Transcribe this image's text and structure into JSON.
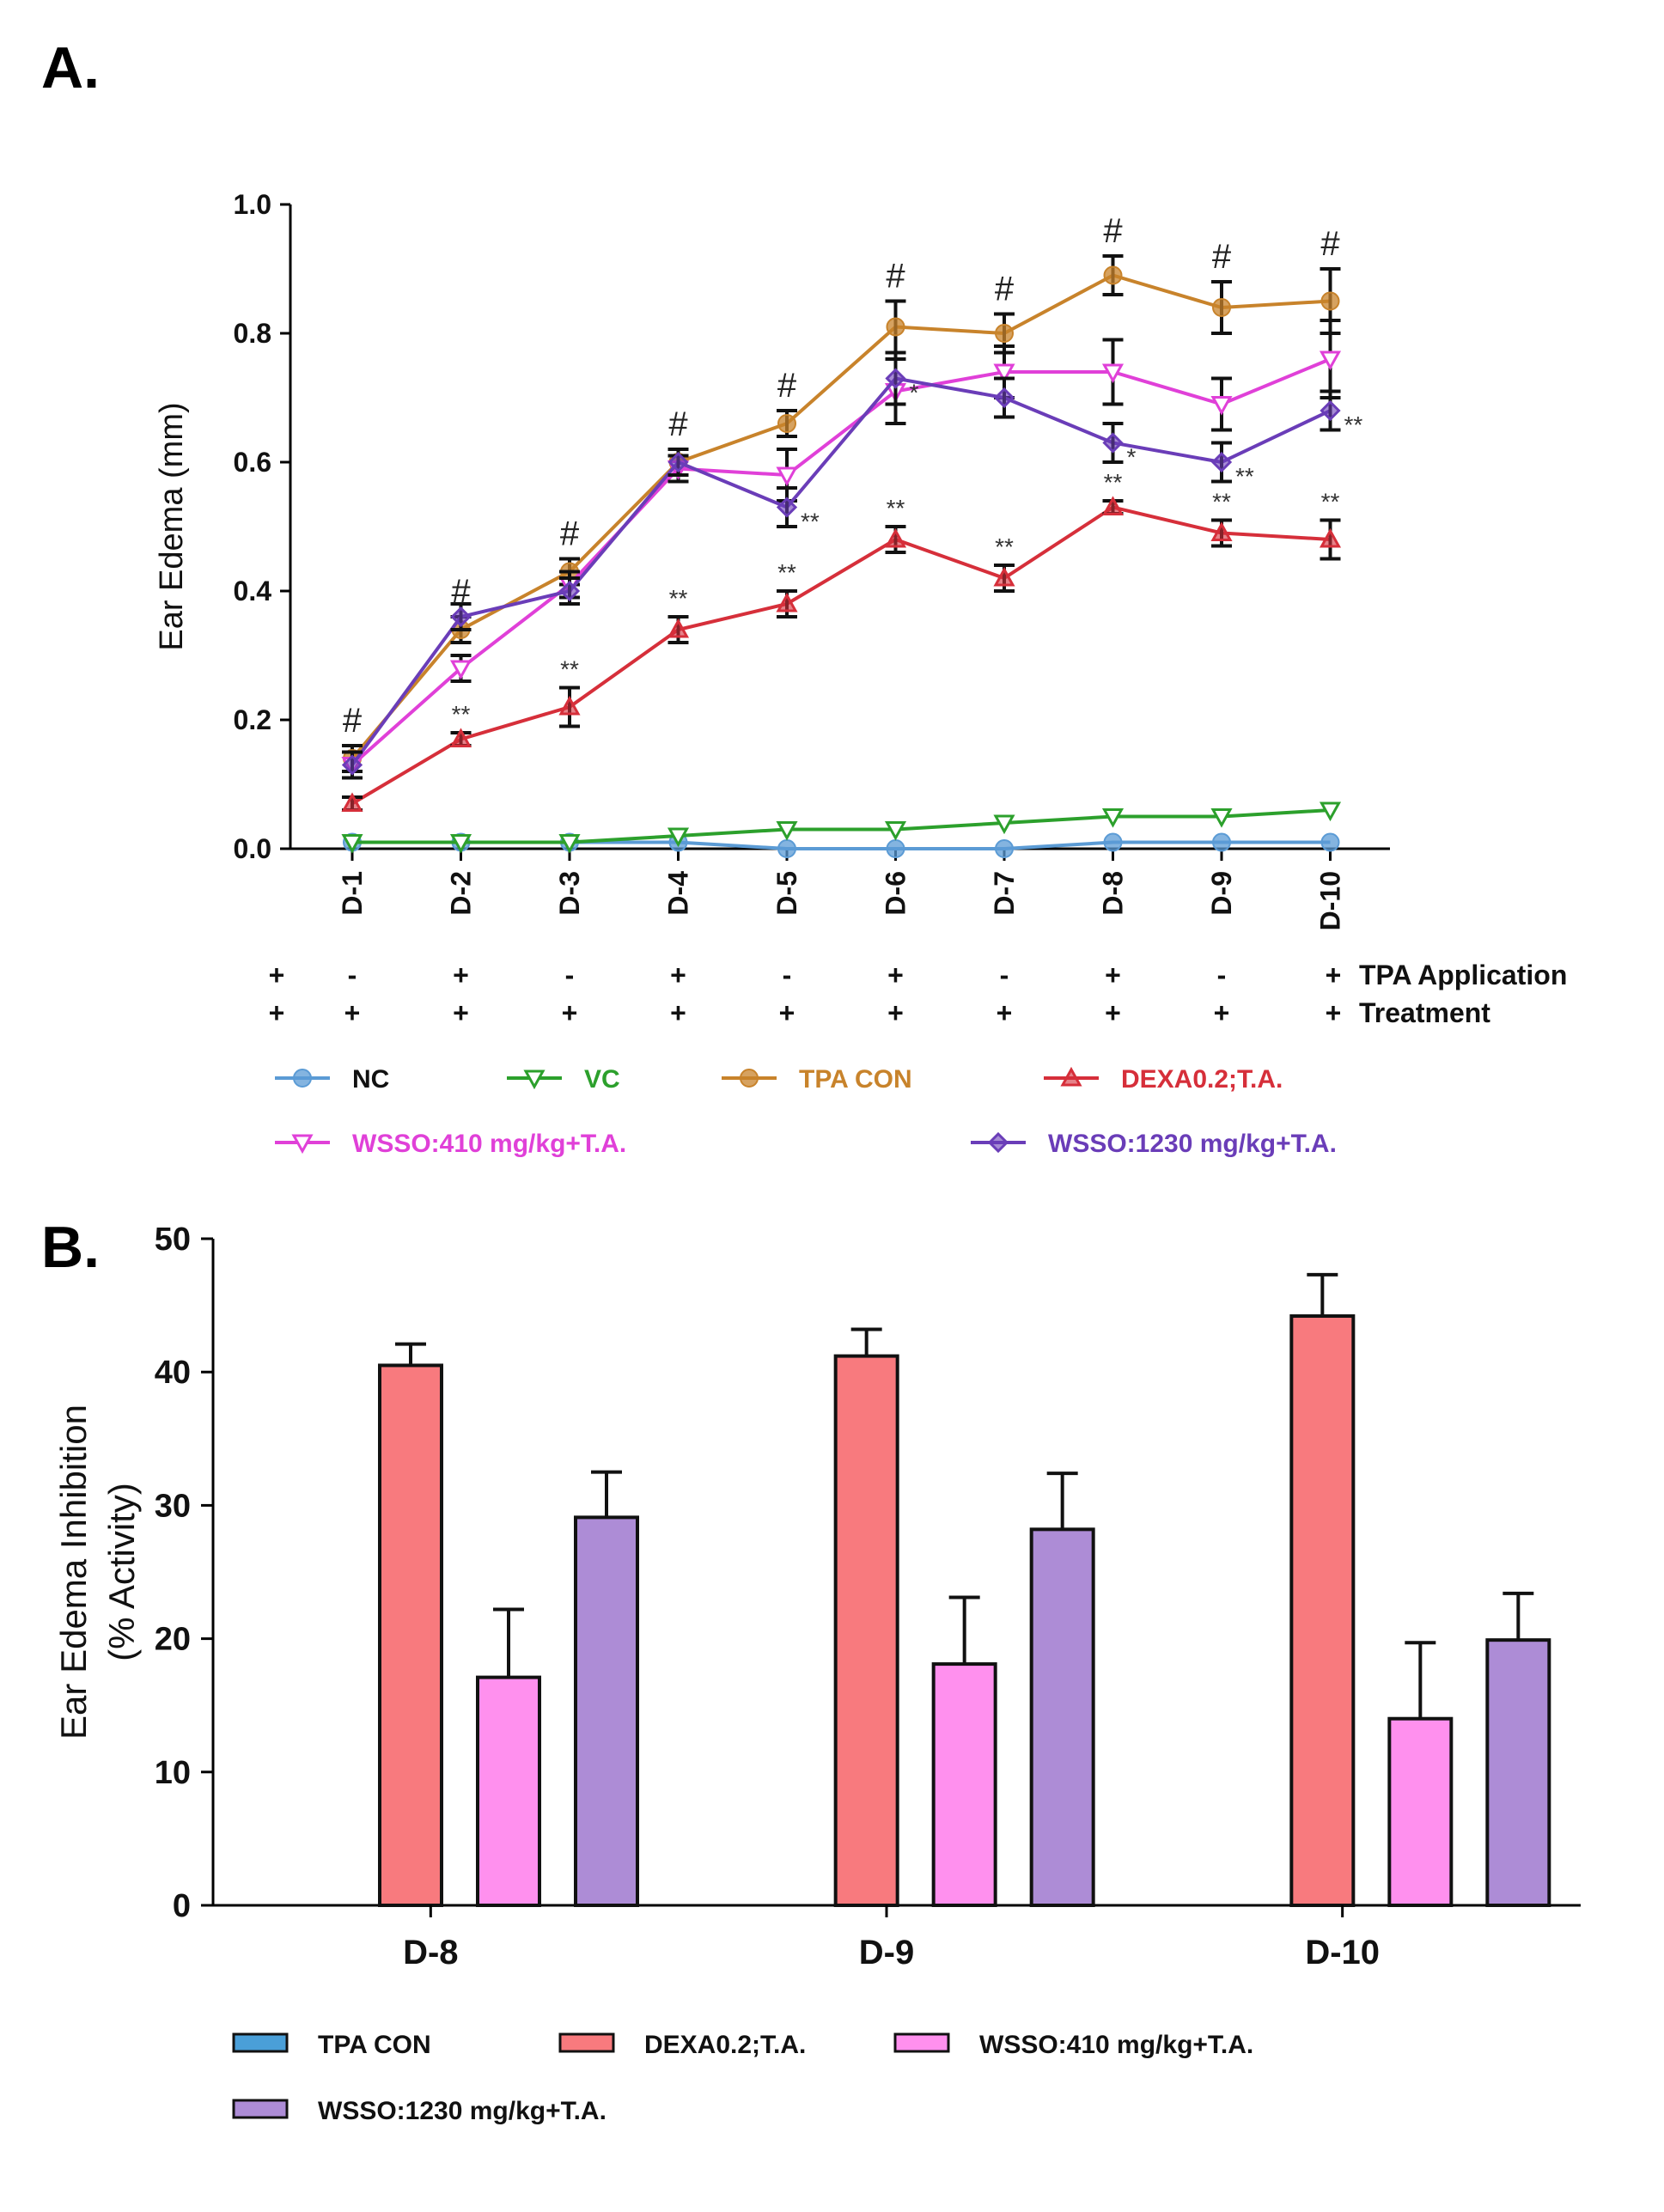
{
  "panel_a_label": "A.",
  "panel_b_label": "B.",
  "protocol": {
    "tpa_label": "TPA Application",
    "treatment_label": "Treatment",
    "tpa_signs": [
      "+",
      "-",
      "+",
      "-",
      "+",
      "-",
      "+",
      "-",
      "+",
      "-",
      "+"
    ],
    "treatment_signs": [
      "+",
      "+",
      "+",
      "+",
      "+",
      "+",
      "+",
      "+",
      "+",
      "+",
      "+"
    ]
  },
  "chart_data": [
    {
      "type": "line",
      "title": "",
      "xlabel": "",
      "ylabel": "Ear Edema (mm)",
      "ylim": [
        0,
        1.0
      ],
      "yticks": [
        "0.0",
        "0.2",
        "0.4",
        "0.6",
        "0.8",
        "1.0"
      ],
      "categories": [
        "D-1",
        "D-2",
        "D-3",
        "D-4",
        "D-5",
        "D-6",
        "D-7",
        "D-8",
        "D-9",
        "D-10"
      ],
      "series": [
        {
          "name": "NC",
          "color": "#5b9bd5",
          "marker": "circle",
          "values": [
            0.01,
            0.01,
            0.01,
            0.01,
            0.0,
            0.0,
            0.0,
            0.01,
            0.01,
            0.01
          ],
          "errors": [
            0,
            0,
            0,
            0,
            0,
            0,
            0,
            0,
            0,
            0
          ]
        },
        {
          "name": "VC",
          "color": "#2ca02c",
          "marker": "triangle-down",
          "values": [
            0.01,
            0.01,
            0.01,
            0.02,
            0.03,
            0.03,
            0.04,
            0.05,
            0.05,
            0.06
          ],
          "errors": [
            0,
            0,
            0,
            0,
            0,
            0,
            0,
            0,
            0,
            0
          ]
        },
        {
          "name": "TPA CON",
          "color": "#c8832b",
          "marker": "circle",
          "values": [
            0.14,
            0.34,
            0.43,
            0.6,
            0.66,
            0.81,
            0.8,
            0.89,
            0.84,
            0.85
          ],
          "errors": [
            0.02,
            0.02,
            0.02,
            0.02,
            0.02,
            0.04,
            0.03,
            0.03,
            0.04,
            0.05
          ]
        },
        {
          "name": "DEXA0.2;T.A.",
          "color": "#d62f3a",
          "marker": "triangle-up",
          "values": [
            0.07,
            0.17,
            0.22,
            0.34,
            0.38,
            0.48,
            0.42,
            0.53,
            0.49,
            0.48
          ],
          "errors": [
            0.01,
            0.01,
            0.03,
            0.02,
            0.02,
            0.02,
            0.02,
            0.01,
            0.02,
            0.03
          ]
        },
        {
          "name": "WSSO:410 mg/kg+T.A.",
          "color": "#e040d8",
          "marker": "triangle-down",
          "values": [
            0.13,
            0.28,
            0.41,
            0.59,
            0.58,
            0.71,
            0.74,
            0.74,
            0.69,
            0.76
          ],
          "errors": [
            0.02,
            0.02,
            0.02,
            0.02,
            0.04,
            0.05,
            0.04,
            0.05,
            0.04,
            0.06
          ]
        },
        {
          "name": "WSSO:1230 mg/kg+T.A.",
          "color": "#6a3db8",
          "marker": "diamond",
          "values": [
            0.13,
            0.36,
            0.4,
            0.6,
            0.53,
            0.73,
            0.7,
            0.63,
            0.6,
            0.68
          ],
          "errors": [
            0.02,
            0.02,
            0.02,
            0.02,
            0.03,
            0.04,
            0.03,
            0.03,
            0.03,
            0.03
          ]
        }
      ],
      "annotations": {
        "hash": {
          "symbol": "#",
          "days": [
            "D-1",
            "D-2",
            "D-3",
            "D-4",
            "D-5",
            "D-6",
            "D-7",
            "D-8",
            "D-9",
            "D-10"
          ]
        },
        "dexa_stars": {
          "symbol": "**",
          "days": [
            "D-2",
            "D-3",
            "D-4",
            "D-5",
            "D-6",
            "D-7",
            "D-8",
            "D-9",
            "D-10"
          ]
        },
        "wsso1230_stars": [
          {
            "day": "D-5",
            "symbol": "**"
          },
          {
            "day": "D-6",
            "symbol": "*"
          },
          {
            "day": "D-8",
            "symbol": "*"
          },
          {
            "day": "D-9",
            "symbol": "**"
          },
          {
            "day": "D-10",
            "symbol": "**"
          }
        ]
      },
      "legend": [
        "NC",
        "VC",
        "TPA CON",
        "DEXA0.2;T.A.",
        "WSSO:410 mg/kg+T.A.",
        "WSSO:1230 mg/kg+T.A."
      ]
    },
    {
      "type": "bar",
      "title": "",
      "xlabel": "",
      "ylabel": [
        "Ear Edema Inhibition",
        "(% Activity)"
      ],
      "ylim": [
        0,
        50
      ],
      "yticks": [
        "0",
        "10",
        "20",
        "30",
        "40",
        "50"
      ],
      "categories": [
        "D-8",
        "D-9",
        "D-10"
      ],
      "series": [
        {
          "name": "TPA CON",
          "color": "#4a9fd8",
          "values": [
            0,
            0,
            0
          ],
          "errors": [
            0,
            0,
            0
          ]
        },
        {
          "name": "DEXA0.2;T.A.",
          "color": "#f87a7e",
          "values": [
            40.5,
            41.2,
            44.2
          ],
          "errors": [
            1.6,
            2.0,
            3.1
          ]
        },
        {
          "name": "WSSO:410 mg/kg+T.A.",
          "color": "#ff90ee",
          "values": [
            17.1,
            18.1,
            14.0
          ],
          "errors": [
            5.1,
            5.0,
            5.7
          ]
        },
        {
          "name": "WSSO:1230 mg/kg+T.A.",
          "color": "#ad8cd6",
          "values": [
            29.1,
            28.2,
            19.9
          ],
          "errors": [
            3.4,
            4.2,
            3.5
          ]
        }
      ],
      "legend": [
        "TPA CON",
        "DEXA0.2;T.A.",
        "WSSO:410 mg/kg+T.A.",
        "WSSO:1230 mg/kg+T.A."
      ]
    }
  ]
}
